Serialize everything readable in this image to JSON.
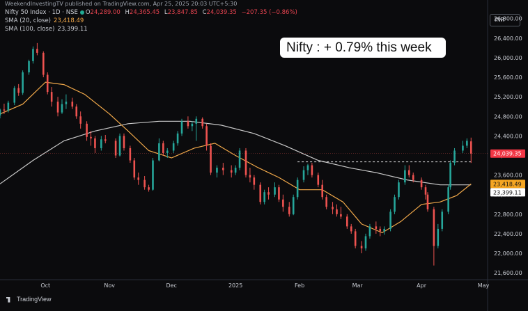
{
  "header": {
    "publisher": "WeekendInvestingTV published on TradingView.com, Apr 25, 2025 20:03 UTC+5:30",
    "symbol_line": "Nifty 50 Index · 1D · NSE",
    "ohlc": {
      "o_label": "O",
      "o": "24,289.00",
      "h_label": "H",
      "h": "24,365.45",
      "l_label": "L",
      "l": "23,847.85",
      "c_label": "C",
      "c": "24,039.35",
      "change": "−207.35 (−0.86%)"
    },
    "sma20_label": "SMA (20, close)",
    "sma20_value": "23,418.49",
    "sma100_label": "SMA (100, close)",
    "sma100_value": "23,399.11"
  },
  "toolbar": {
    "currency": "INR"
  },
  "annotation": {
    "text": "Nifty : + 0.79% this week"
  },
  "watermark": {
    "text": "TradingView"
  },
  "colors": {
    "up": "#26a69a",
    "down": "#ef5350",
    "sma20": "#f2a94a",
    "sma100": "#c9c9c9",
    "last_price_bg": "#f23645",
    "sma20_bg": "#f5a623",
    "sma100_bg": "#ffffff",
    "background": "#0b0b0d",
    "grid": "#1c1e24",
    "axis_text": "#c8cbd2"
  },
  "chart_data": {
    "type": "candlestick",
    "title": "Nifty 50 Index · 1D · NSE",
    "xlabel": "",
    "ylabel": "",
    "ylim": [
      21460,
      27180
    ],
    "yticks": [
      21600,
      22000,
      22400,
      22800,
      23200,
      23600,
      24000,
      24400,
      24800,
      25200,
      25600,
      26000,
      26400,
      26800
    ],
    "ytick_labels": [
      "21,600.00",
      "22,000.00",
      "22,400.00",
      "22,800.00",
      "23,200.00",
      "23,600.00",
      "24,000.00",
      "24,400.00",
      "24,800.00",
      "25,200.00",
      "25,600.00",
      "26,000.00",
      "26,400.00",
      "26,800.00"
    ],
    "date_range": [
      "2024-09-09",
      "2025-05-03"
    ],
    "xtick_dates": [
      "2024-10-01",
      "2024-11-01",
      "2024-12-01",
      "2025-01-01",
      "2025-02-01",
      "2025-03-01",
      "2025-04-01",
      "2025-05-01"
    ],
    "xtick_labels": [
      "Oct",
      "Nov",
      "Dec",
      "2025",
      "Feb",
      "Mar",
      "Apr",
      "May"
    ],
    "grid": false,
    "dashed_level": {
      "value": 23870,
      "from": "2025-01-31",
      "to": "2025-04-25"
    },
    "price_labels": [
      {
        "value": 24039.35,
        "text": "24,039.35",
        "role": "last"
      },
      {
        "value": 23418.49,
        "text": "23,418.49",
        "role": "sma20"
      },
      {
        "value": 23399.11,
        "text": "23,399.11",
        "role": "sma100"
      }
    ],
    "sma20": [
      [
        "2024-09-09",
        24850
      ],
      [
        "2024-09-20",
        25050
      ],
      [
        "2024-10-01",
        25500
      ],
      [
        "2024-10-10",
        25450
      ],
      [
        "2024-10-20",
        25250
      ],
      [
        "2024-11-01",
        24850
      ],
      [
        "2024-11-10",
        24500
      ],
      [
        "2024-11-20",
        24100
      ],
      [
        "2024-12-01",
        23950
      ],
      [
        "2024-12-12",
        24150
      ],
      [
        "2024-12-22",
        24250
      ],
      [
        "2025-01-01",
        24000
      ],
      [
        "2025-01-12",
        23750
      ],
      [
        "2025-01-22",
        23550
      ],
      [
        "2025-02-01",
        23300
      ],
      [
        "2025-02-12",
        23300
      ],
      [
        "2025-02-22",
        23050
      ],
      [
        "2025-03-03",
        22600
      ],
      [
        "2025-03-13",
        22420
      ],
      [
        "2025-03-22",
        22650
      ],
      [
        "2025-04-01",
        23000
      ],
      [
        "2025-04-10",
        23050
      ],
      [
        "2025-04-18",
        23180
      ],
      [
        "2025-04-25",
        23418.49
      ]
    ],
    "sma100": [
      [
        "2024-09-09",
        23420
      ],
      [
        "2024-09-25",
        23900
      ],
      [
        "2024-10-10",
        24300
      ],
      [
        "2024-10-25",
        24500
      ],
      [
        "2024-11-10",
        24650
      ],
      [
        "2024-11-25",
        24700
      ],
      [
        "2024-12-10",
        24700
      ],
      [
        "2024-12-25",
        24620
      ],
      [
        "2025-01-10",
        24450
      ],
      [
        "2025-01-25",
        24200
      ],
      [
        "2025-02-10",
        23900
      ],
      [
        "2025-02-25",
        23750
      ],
      [
        "2025-03-10",
        23650
      ],
      [
        "2025-03-25",
        23500
      ],
      [
        "2025-04-10",
        23400
      ],
      [
        "2025-04-25",
        23399.11
      ]
    ],
    "candles": [
      [
        "2024-09-09",
        24820,
        24960,
        24760,
        24940
      ],
      [
        "2024-09-11",
        24940,
        25060,
        24850,
        24920
      ],
      [
        "2024-09-13",
        24920,
        25120,
        24880,
        25080
      ],
      [
        "2024-09-16",
        25080,
        25420,
        25030,
        25380
      ],
      [
        "2024-09-18",
        25380,
        25460,
        25220,
        25280
      ],
      [
        "2024-09-20",
        25280,
        25740,
        25240,
        25700
      ],
      [
        "2024-09-23",
        25700,
        25960,
        25650,
        25930
      ],
      [
        "2024-09-25",
        25930,
        26230,
        25880,
        26180
      ],
      [
        "2024-09-27",
        26180,
        26300,
        26050,
        26100
      ],
      [
        "2024-09-30",
        26100,
        26130,
        25600,
        25650
      ],
      [
        "2024-10-02",
        25650,
        25700,
        25250,
        25300
      ],
      [
        "2024-10-04",
        25300,
        25400,
        25000,
        25100
      ],
      [
        "2024-10-07",
        25100,
        25200,
        24800,
        24880
      ],
      [
        "2024-10-09",
        24880,
        25150,
        24850,
        25050
      ],
      [
        "2024-10-11",
        25050,
        25250,
        24950,
        25100
      ],
      [
        "2024-10-14",
        25100,
        25180,
        24950,
        25000
      ],
      [
        "2024-10-16",
        25000,
        25050,
        24750,
        24800
      ],
      [
        "2024-10-18",
        24800,
        24900,
        24550,
        24650
      ],
      [
        "2024-10-21",
        24650,
        24700,
        24300,
        24380
      ],
      [
        "2024-10-23",
        24380,
        24500,
        24200,
        24350
      ],
      [
        "2024-10-25",
        24350,
        24400,
        24050,
        24150
      ],
      [
        "2024-10-28",
        24150,
        24400,
        24100,
        24330
      ],
      [
        "2024-10-30",
        24330,
        24420,
        24250,
        24300
      ],
      [
        "2024-11-04",
        24300,
        24350,
        23950,
        24000
      ],
      [
        "2024-11-06",
        24000,
        24450,
        23980,
        24400
      ],
      [
        "2024-11-08",
        24400,
        24450,
        24100,
        24150
      ],
      [
        "2024-11-11",
        24150,
        24200,
        23850,
        23900
      ],
      [
        "2024-11-13",
        23900,
        23950,
        23500,
        23550
      ],
      [
        "2024-11-15",
        23550,
        23650,
        23400,
        23500
      ],
      [
        "2024-11-18",
        23500,
        23580,
        23300,
        23350
      ],
      [
        "2024-11-20",
        23350,
        23400,
        23260,
        23300
      ],
      [
        "2024-11-22",
        23300,
        23950,
        23280,
        23900
      ],
      [
        "2024-11-25",
        23900,
        24350,
        23880,
        24250
      ],
      [
        "2024-11-27",
        24250,
        24300,
        24000,
        24050
      ],
      [
        "2024-11-29",
        24050,
        24150,
        23950,
        24100
      ],
      [
        "2024-12-02",
        24100,
        24300,
        24050,
        24250
      ],
      [
        "2024-12-04",
        24250,
        24500,
        24200,
        24450
      ],
      [
        "2024-12-06",
        24450,
        24750,
        24400,
        24700
      ],
      [
        "2024-12-09",
        24700,
        24800,
        24550,
        24600
      ],
      [
        "2024-12-11",
        24600,
        24700,
        24500,
        24650
      ],
      [
        "2024-12-13",
        24650,
        24800,
        24300,
        24750
      ],
      [
        "2024-12-16",
        24750,
        24780,
        24550,
        24600
      ],
      [
        "2024-12-18",
        24600,
        24650,
        24100,
        24200
      ],
      [
        "2024-12-20",
        24200,
        24250,
        23600,
        23650
      ],
      [
        "2024-12-23",
        23650,
        23800,
        23550,
        23750
      ],
      [
        "2024-12-26",
        23750,
        23850,
        23600,
        23700
      ],
      [
        "2024-12-30",
        23700,
        23800,
        23550,
        23650
      ],
      [
        "2025-01-01",
        23650,
        23800,
        23600,
        23750
      ],
      [
        "2025-01-03",
        23750,
        24150,
        23700,
        24100
      ],
      [
        "2025-01-06",
        24100,
        24150,
        23550,
        23600
      ],
      [
        "2025-01-08",
        23600,
        23750,
        23450,
        23550
      ],
      [
        "2025-01-10",
        23550,
        23600,
        23300,
        23400
      ],
      [
        "2025-01-13",
        23400,
        23450,
        23000,
        23050
      ],
      [
        "2025-01-15",
        23050,
        23300,
        23000,
        23250
      ],
      [
        "2025-01-17",
        23250,
        23350,
        23100,
        23200
      ],
      [
        "2025-01-20",
        23200,
        23450,
        23150,
        23350
      ],
      [
        "2025-01-22",
        23350,
        23400,
        23050,
        23100
      ],
      [
        "2025-01-24",
        23100,
        23200,
        22850,
        22950
      ],
      [
        "2025-01-27",
        22950,
        23050,
        22750,
        22800
      ],
      [
        "2025-01-29",
        22800,
        23200,
        22780,
        23150
      ],
      [
        "2025-01-31",
        23150,
        23550,
        23100,
        23500
      ],
      [
        "2025-02-03",
        23500,
        23780,
        23450,
        23700
      ],
      [
        "2025-02-05",
        23700,
        23830,
        23600,
        23800
      ],
      [
        "2025-02-07",
        23800,
        23850,
        23550,
        23600
      ],
      [
        "2025-02-10",
        23600,
        23650,
        23350,
        23400
      ],
      [
        "2025-02-12",
        23400,
        23500,
        23100,
        23150
      ],
      [
        "2025-02-14",
        23150,
        23200,
        22900,
        22950
      ],
      [
        "2025-02-17",
        22950,
        23050,
        22800,
        22900
      ],
      [
        "2025-02-19",
        22900,
        23000,
        22750,
        22800
      ],
      [
        "2025-02-21",
        22800,
        22950,
        22700,
        22750
      ],
      [
        "2025-02-24",
        22750,
        22800,
        22500,
        22550
      ],
      [
        "2025-02-26",
        22550,
        22600,
        22400,
        22450
      ],
      [
        "2025-02-28",
        22450,
        22500,
        22100,
        22150
      ],
      [
        "2025-03-03",
        22150,
        22250,
        22000,
        22100
      ],
      [
        "2025-03-05",
        22100,
        22400,
        22050,
        22350
      ],
      [
        "2025-03-07",
        22350,
        22600,
        22300,
        22550
      ],
      [
        "2025-03-10",
        22550,
        22650,
        22400,
        22500
      ],
      [
        "2025-03-12",
        22500,
        22550,
        22350,
        22450
      ],
      [
        "2025-03-14",
        22450,
        22550,
        22380,
        22500
      ],
      [
        "2025-03-17",
        22500,
        22900,
        22450,
        22850
      ],
      [
        "2025-03-19",
        22850,
        23200,
        22800,
        23150
      ],
      [
        "2025-03-21",
        23150,
        23500,
        23100,
        23450
      ],
      [
        "2025-03-24",
        23450,
        23800,
        23400,
        23700
      ],
      [
        "2025-03-26",
        23700,
        23800,
        23550,
        23600
      ],
      [
        "2025-03-28",
        23600,
        23650,
        23450,
        23500
      ],
      [
        "2025-04-01",
        23500,
        23550,
        23300,
        23350
      ],
      [
        "2025-04-03",
        23350,
        23400,
        23100,
        23200
      ],
      [
        "2025-04-04",
        23200,
        23250,
        22850,
        22900
      ],
      [
        "2025-04-07",
        22900,
        22950,
        21750,
        22150
      ],
      [
        "2025-04-09",
        22150,
        22600,
        22100,
        22500
      ],
      [
        "2025-04-11",
        22500,
        22900,
        22450,
        22850
      ],
      [
        "2025-04-14",
        22850,
        23400,
        22800,
        23350
      ],
      [
        "2025-04-15",
        23350,
        23900,
        23300,
        23850
      ],
      [
        "2025-04-17",
        23850,
        24150,
        23800,
        24100
      ],
      [
        "2025-04-21",
        24100,
        24300,
        24050,
        24200
      ],
      [
        "2025-04-23",
        24200,
        24350,
        24150,
        24300
      ],
      [
        "2025-04-25",
        24289,
        24365.45,
        23847.85,
        24039.35
      ]
    ]
  }
}
